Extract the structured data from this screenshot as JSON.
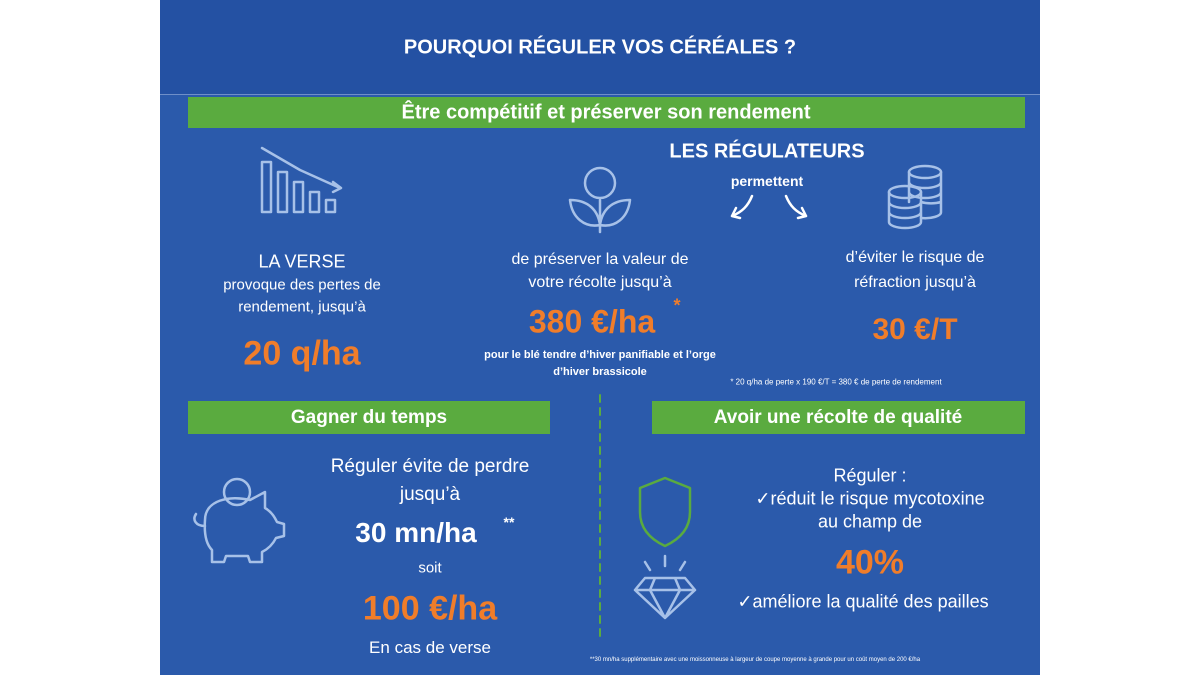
{
  "header": {
    "title": "POURQUOI RÉGULER VOS CÉRÉALES ?"
  },
  "section1": {
    "banner": "Être compétitif et préserver son rendement",
    "verse": {
      "title": "LA VERSE",
      "lines": [
        "provoque des pertes de",
        "rendement, jusqu’à"
      ],
      "value": "20 q/ha"
    },
    "regulators": {
      "title": "LES RÉGULATEURS",
      "subtitle": "permettent"
    },
    "harvest": {
      "lines": [
        "de préserver la valeur de",
        "votre récolte jusqu’à"
      ],
      "value": "380 €/ha",
      "mark": "*",
      "note": [
        "pour le blé tendre d’hiver panifiable et l’orge",
        "d’hiver brassicole"
      ]
    },
    "refraction": {
      "lines": [
        "d’éviter le risque de",
        "réfraction jusqu’à"
      ],
      "value": "30 €/T"
    },
    "footnote": "* 20 q/ha de perte x 190 €/T = 380 € de perte de rendement"
  },
  "section2": {
    "banner": "Gagner du temps",
    "lines": [
      "Réguler évite de perdre",
      "jusqu’à"
    ],
    "time": "30 mn/ha",
    "mark": "**",
    "connector": "soit",
    "value": "100 €/ha",
    "condition": "En cas de verse"
  },
  "section3": {
    "banner": "Avoir une récolte de qualité",
    "intro": "Réguler :",
    "lines": [
      "✓réduit le risque mycotoxine",
      "au champ de"
    ],
    "value": "40%",
    "benefit": "✓améliore la qualité des pailles",
    "footnote": "**30 mn/ha supplémentaire avec une moissonneuse à largeur de coupe moyenne à grande pour un coût moyen de 200 €/ha"
  }
}
